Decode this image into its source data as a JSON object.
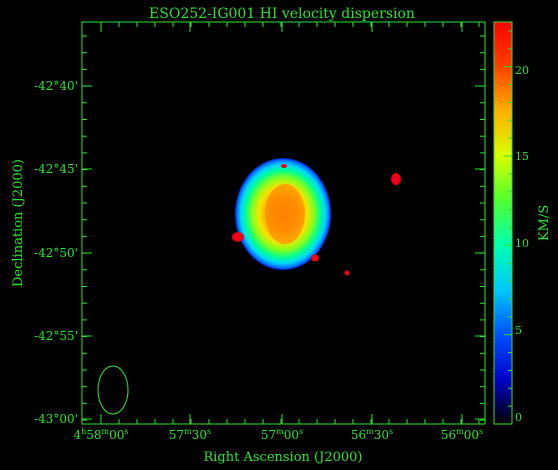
{
  "title": "ESO252-IG001   HI velocity dispersion",
  "axes": {
    "xlabel": "Right Ascension (J2000)",
    "ylabel": "Declination (J2000)",
    "x_ticks": [
      {
        "h": "4",
        "m": "58",
        "s": "00"
      },
      {
        "h": "",
        "m": "57",
        "s": "30"
      },
      {
        "h": "",
        "m": "57",
        "s": "00"
      },
      {
        "h": "",
        "m": "56",
        "s": "30"
      },
      {
        "h": "",
        "m": "56",
        "s": "00"
      }
    ],
    "y_ticks": [
      "-42°40'",
      "-42°45'",
      "-42°50'",
      "-42°55'",
      "-43°00'"
    ]
  },
  "colorbar": {
    "label": "KM/S",
    "ticks": [
      "0",
      "5",
      "10",
      "15",
      "20"
    ],
    "range": [
      0,
      22.5
    ],
    "colors": [
      "#000000",
      "#0000c8",
      "#0050ff",
      "#00c8ff",
      "#00ffb0",
      "#50ff30",
      "#d8ff00",
      "#ffb000",
      "#ff4000",
      "#ff0000"
    ]
  },
  "chart_data": {
    "type": "heatmap",
    "title": "ESO252-IG001   HI velocity dispersion",
    "xlabel": "Right Ascension (J2000)",
    "ylabel": "Declination (J2000)",
    "colorbar_label": "KM/S",
    "value_range": [
      0,
      22.5
    ],
    "x_range": [
      "4h58m00s",
      "56m00s"
    ],
    "y_range": [
      "-43°00'",
      "-42°40'"
    ],
    "features": [
      {
        "type": "galaxy",
        "ra": "4h57m00s",
        "dec": "-42°47.5'",
        "peak_dispersion_kms": 21
      },
      {
        "type": "compact-source",
        "ra": "4h56m32s",
        "dec": "-42°46'",
        "dispersion_kms": 22
      },
      {
        "type": "compact-source",
        "ra": "4h57m12s",
        "dec": "-42°49'",
        "dispersion_kms": 22
      },
      {
        "type": "compact-source",
        "ra": "4h56m50s",
        "dec": "-42°50'",
        "dispersion_kms": 22
      }
    ],
    "beam_shown": true
  }
}
